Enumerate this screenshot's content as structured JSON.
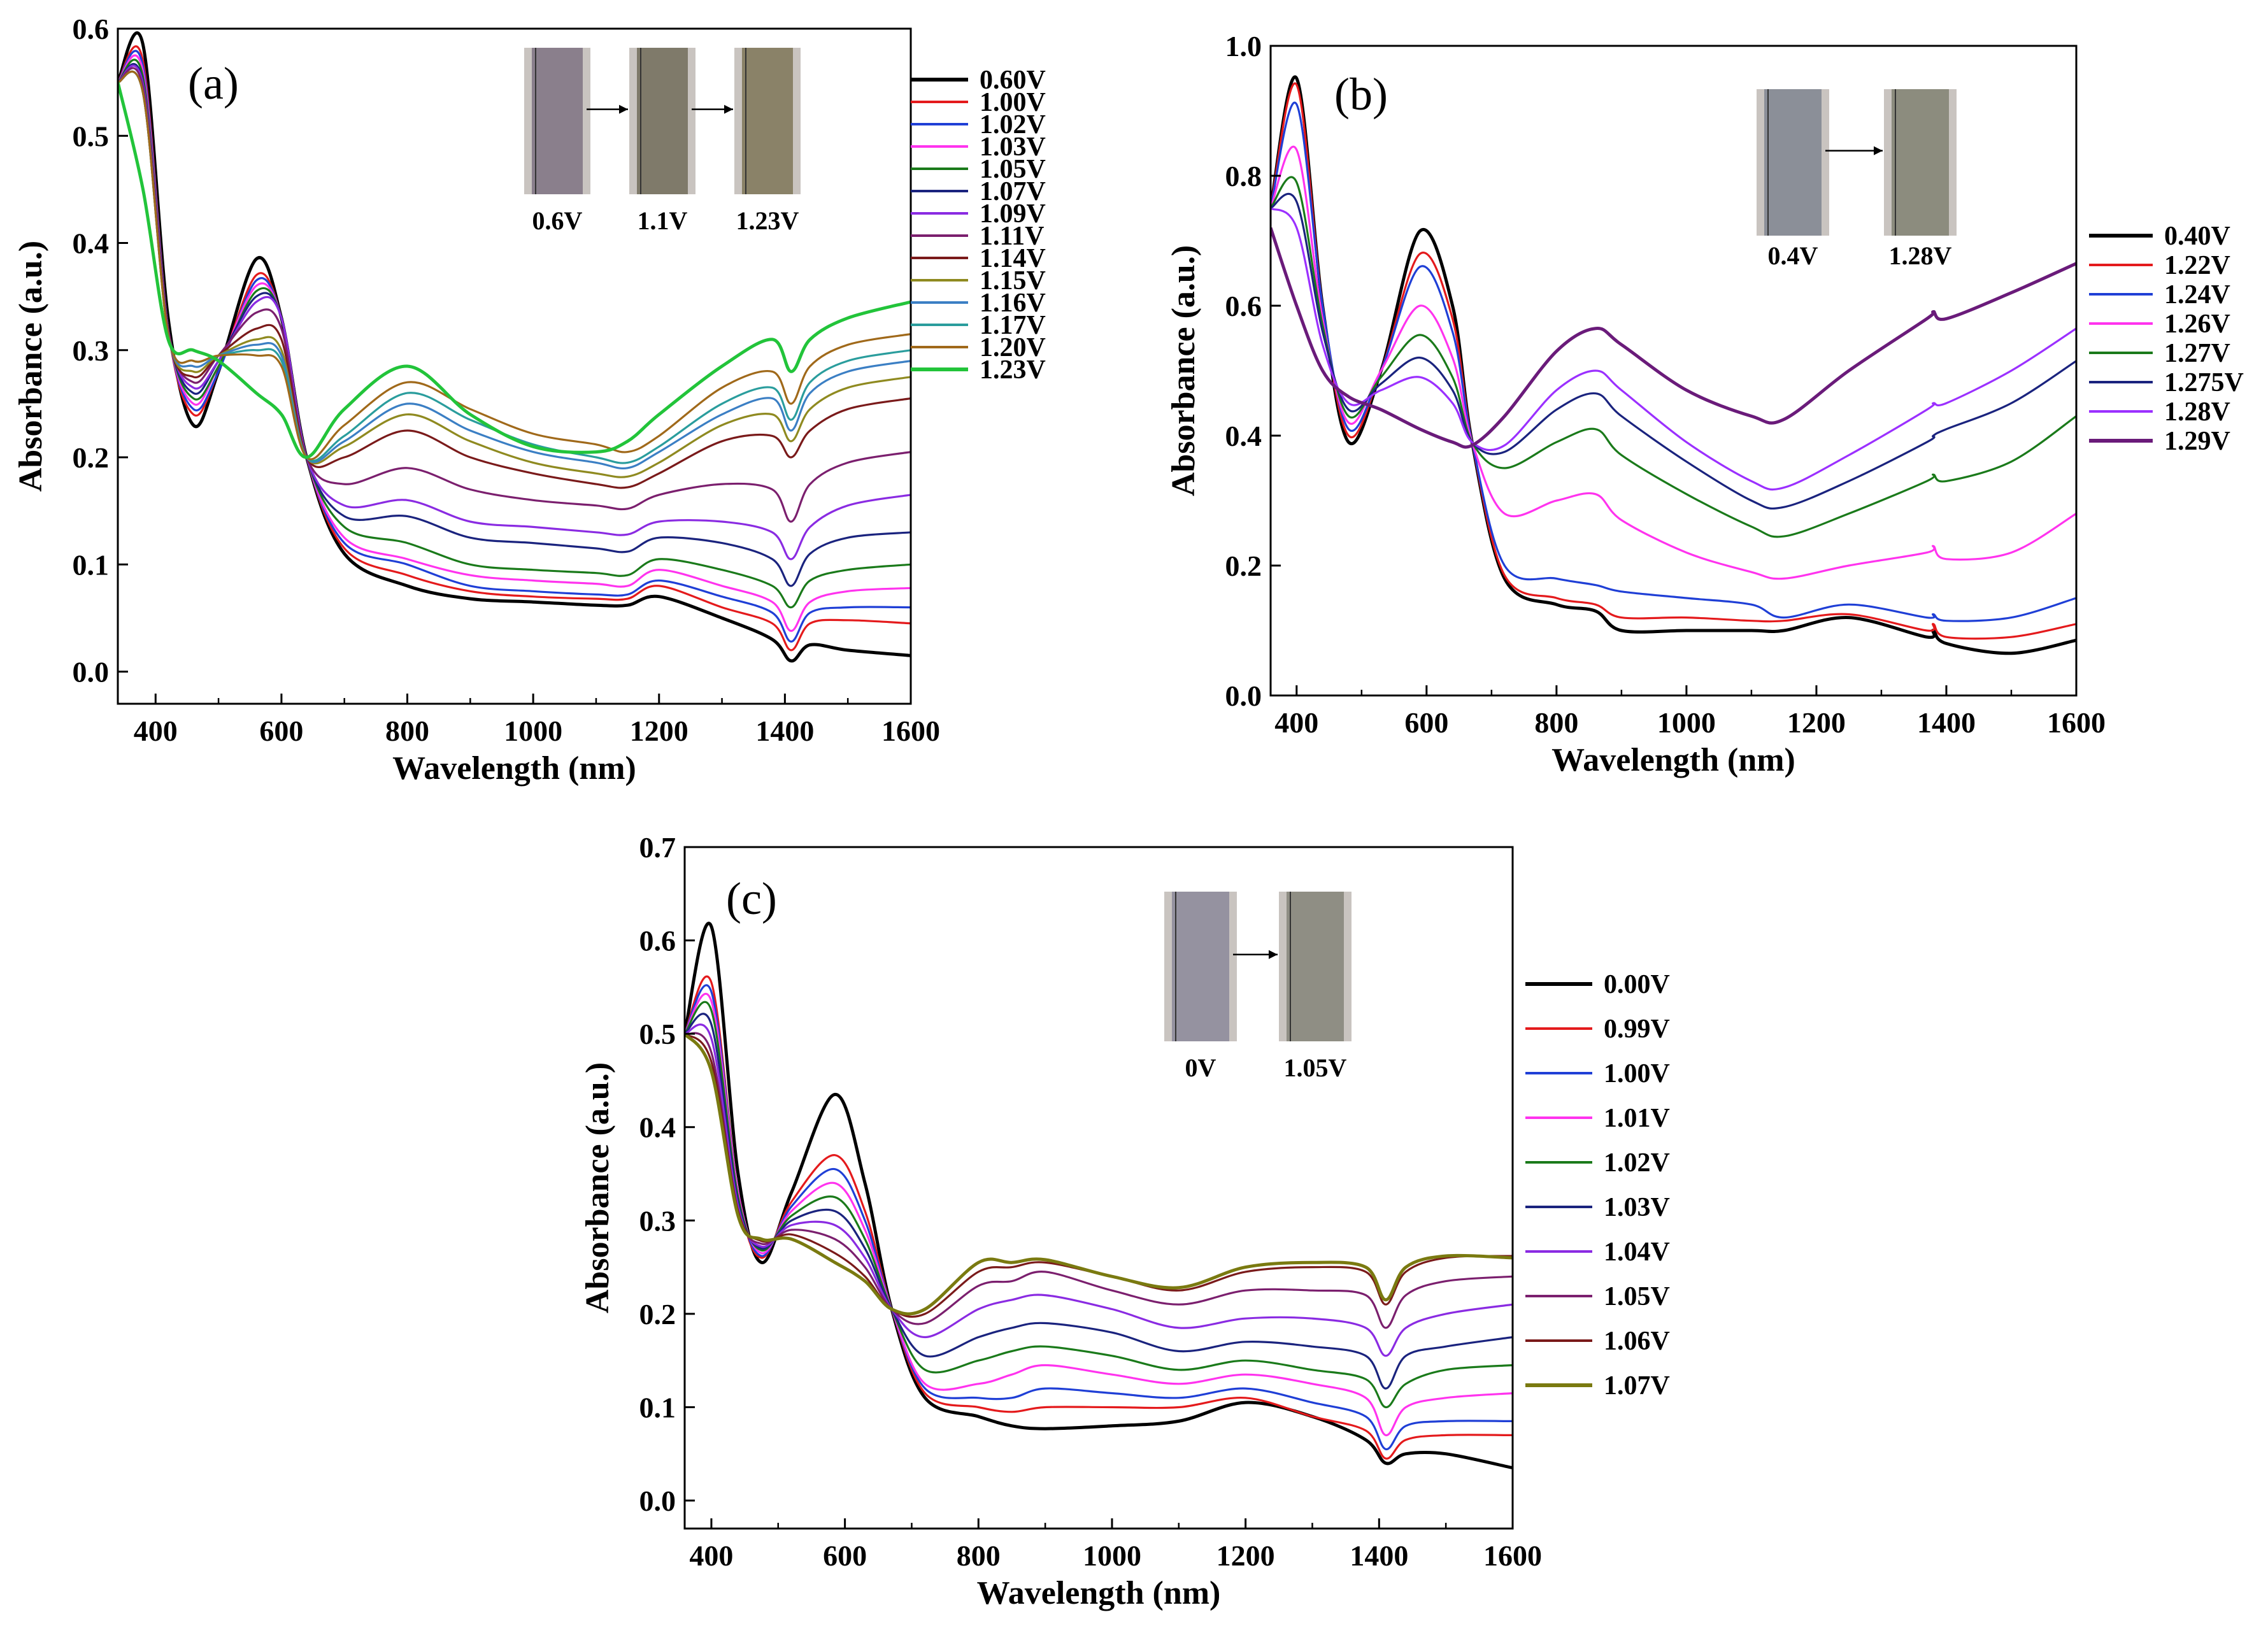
{
  "chart_data": [
    {
      "type": "line",
      "panel_label": "(a)",
      "xlabel": "Wavelength (nm)",
      "ylabel": "Absorbance (a.u.)",
      "xlim": [
        340,
        1600
      ],
      "ylim": [
        -0.03,
        0.6
      ],
      "xticks": [
        400,
        600,
        800,
        1000,
        1200,
        1400,
        1600
      ],
      "yticks": [
        0.0,
        0.1,
        0.2,
        0.3,
        0.4,
        0.5,
        0.6
      ],
      "inset_labels": [
        "0.6V",
        "1.1V",
        "1.23V"
      ],
      "legend_position": "right",
      "x": [
        340,
        380,
        420,
        460,
        500,
        560,
        600,
        640,
        700,
        800,
        900,
        1000,
        1100,
        1150,
        1200,
        1300,
        1380,
        1410,
        1440,
        1500,
        1600
      ],
      "series": [
        {
          "name": "0.60V",
          "color": "#000000",
          "values": [
            0.55,
            0.585,
            0.33,
            0.23,
            0.28,
            0.385,
            0.33,
            0.2,
            0.11,
            0.08,
            0.068,
            0.065,
            0.062,
            0.062,
            0.07,
            0.05,
            0.03,
            0.01,
            0.025,
            0.02,
            0.015
          ]
        },
        {
          "name": "1.00V",
          "color": "#e41a1c",
          "values": [
            0.55,
            0.57,
            0.32,
            0.24,
            0.28,
            0.37,
            0.33,
            0.2,
            0.115,
            0.09,
            0.075,
            0.07,
            0.068,
            0.068,
            0.08,
            0.06,
            0.045,
            0.02,
            0.045,
            0.048,
            0.045
          ]
        },
        {
          "name": "1.02V",
          "color": "#1f3fd6",
          "values": [
            0.55,
            0.565,
            0.32,
            0.245,
            0.28,
            0.365,
            0.33,
            0.2,
            0.12,
            0.1,
            0.08,
            0.075,
            0.072,
            0.072,
            0.085,
            0.07,
            0.055,
            0.028,
            0.055,
            0.06,
            0.06
          ]
        },
        {
          "name": "1.03V",
          "color": "#ff33ee",
          "values": [
            0.55,
            0.56,
            0.32,
            0.25,
            0.285,
            0.36,
            0.33,
            0.2,
            0.125,
            0.105,
            0.09,
            0.085,
            0.082,
            0.08,
            0.095,
            0.08,
            0.065,
            0.038,
            0.065,
            0.075,
            0.078
          ]
        },
        {
          "name": "1.05V",
          "color": "#1a7a1a",
          "values": [
            0.55,
            0.555,
            0.32,
            0.255,
            0.285,
            0.355,
            0.33,
            0.2,
            0.135,
            0.12,
            0.1,
            0.095,
            0.092,
            0.09,
            0.105,
            0.095,
            0.08,
            0.06,
            0.085,
            0.095,
            0.1
          ]
        },
        {
          "name": "1.07V",
          "color": "#1a237e",
          "values": [
            0.55,
            0.55,
            0.32,
            0.26,
            0.29,
            0.35,
            0.33,
            0.2,
            0.145,
            0.145,
            0.125,
            0.12,
            0.115,
            0.112,
            0.125,
            0.12,
            0.105,
            0.08,
            0.11,
            0.125,
            0.13
          ]
        },
        {
          "name": "1.09V",
          "color": "#8a2be2",
          "values": [
            0.55,
            0.548,
            0.32,
            0.265,
            0.29,
            0.345,
            0.33,
            0.2,
            0.155,
            0.16,
            0.14,
            0.135,
            0.13,
            0.128,
            0.14,
            0.14,
            0.13,
            0.105,
            0.135,
            0.155,
            0.165
          ]
        },
        {
          "name": "1.11V",
          "color": "#7b1f6e",
          "values": [
            0.55,
            0.545,
            0.32,
            0.27,
            0.295,
            0.335,
            0.32,
            0.2,
            0.175,
            0.19,
            0.17,
            0.16,
            0.155,
            0.152,
            0.165,
            0.175,
            0.17,
            0.14,
            0.175,
            0.195,
            0.205
          ]
        },
        {
          "name": "1.14V",
          "color": "#7a1a1a",
          "values": [
            0.55,
            0.54,
            0.315,
            0.275,
            0.295,
            0.32,
            0.31,
            0.2,
            0.2,
            0.225,
            0.2,
            0.185,
            0.175,
            0.172,
            0.185,
            0.215,
            0.22,
            0.2,
            0.225,
            0.245,
            0.255
          ]
        },
        {
          "name": "1.15V",
          "color": "#8f8a20",
          "values": [
            0.55,
            0.54,
            0.315,
            0.28,
            0.295,
            0.31,
            0.3,
            0.2,
            0.21,
            0.24,
            0.215,
            0.195,
            0.185,
            0.182,
            0.195,
            0.23,
            0.24,
            0.215,
            0.245,
            0.265,
            0.275
          ]
        },
        {
          "name": "1.16V",
          "color": "#3b7fc4",
          "values": [
            0.55,
            0.54,
            0.315,
            0.285,
            0.295,
            0.305,
            0.295,
            0.2,
            0.215,
            0.25,
            0.225,
            0.205,
            0.195,
            0.19,
            0.205,
            0.24,
            0.255,
            0.225,
            0.26,
            0.28,
            0.29
          ]
        },
        {
          "name": "1.17V",
          "color": "#2a9d9d",
          "values": [
            0.55,
            0.54,
            0.315,
            0.29,
            0.295,
            0.3,
            0.29,
            0.2,
            0.22,
            0.26,
            0.235,
            0.212,
            0.2,
            0.195,
            0.21,
            0.25,
            0.265,
            0.235,
            0.27,
            0.29,
            0.3
          ]
        },
        {
          "name": "1.20V",
          "color": "#a0691a",
          "values": [
            0.55,
            0.54,
            0.315,
            0.29,
            0.295,
            0.295,
            0.285,
            0.2,
            0.23,
            0.27,
            0.245,
            0.222,
            0.212,
            0.205,
            0.22,
            0.265,
            0.28,
            0.25,
            0.285,
            0.305,
            0.315
          ]
        },
        {
          "name": "1.23V",
          "color": "#22c43a",
          "values": [
            0.55,
            0.45,
            0.31,
            0.3,
            0.29,
            0.26,
            0.24,
            0.2,
            0.245,
            0.285,
            0.24,
            0.21,
            0.205,
            0.215,
            0.24,
            0.285,
            0.31,
            0.28,
            0.31,
            0.33,
            0.345
          ]
        }
      ]
    },
    {
      "type": "line",
      "panel_label": "(b)",
      "xlabel": "Wavelength (nm)",
      "ylabel": "Absorbance (a.u.)",
      "xlim": [
        360,
        1600
      ],
      "ylim": [
        0.0,
        1.0
      ],
      "xticks": [
        400,
        600,
        800,
        1000,
        1200,
        1400,
        1600
      ],
      "yticks": [
        0.0,
        0.2,
        0.4,
        0.6,
        0.8,
        1.0
      ],
      "inset_labels": [
        "0.4V",
        "1.28V"
      ],
      "legend_position": "right",
      "x": [
        360,
        400,
        440,
        480,
        530,
        590,
        640,
        670,
        720,
        800,
        860,
        900,
        1000,
        1100,
        1150,
        1250,
        1370,
        1380,
        1400,
        1500,
        1600
      ],
      "series": [
        {
          "name": "0.40V",
          "color": "#000000",
          "values": [
            0.75,
            0.95,
            0.6,
            0.39,
            0.5,
            0.715,
            0.6,
            0.39,
            0.18,
            0.14,
            0.13,
            0.1,
            0.1,
            0.1,
            0.1,
            0.12,
            0.09,
            0.1,
            0.08,
            0.065,
            0.085
          ]
        },
        {
          "name": "1.22V",
          "color": "#e41a1c",
          "values": [
            0.75,
            0.94,
            0.6,
            0.4,
            0.5,
            0.68,
            0.58,
            0.39,
            0.185,
            0.15,
            0.14,
            0.12,
            0.12,
            0.115,
            0.115,
            0.125,
            0.1,
            0.11,
            0.09,
            0.09,
            0.11
          ]
        },
        {
          "name": "1.24V",
          "color": "#1f3fd6",
          "values": [
            0.75,
            0.91,
            0.6,
            0.41,
            0.5,
            0.66,
            0.56,
            0.39,
            0.2,
            0.18,
            0.17,
            0.16,
            0.15,
            0.14,
            0.12,
            0.14,
            0.12,
            0.125,
            0.115,
            0.12,
            0.15
          ]
        },
        {
          "name": "1.26V",
          "color": "#ff33ee",
          "values": [
            0.75,
            0.84,
            0.58,
            0.42,
            0.5,
            0.6,
            0.52,
            0.39,
            0.28,
            0.3,
            0.31,
            0.27,
            0.22,
            0.19,
            0.18,
            0.2,
            0.22,
            0.23,
            0.21,
            0.22,
            0.28
          ]
        },
        {
          "name": "1.27V",
          "color": "#1a7a1a",
          "values": [
            0.75,
            0.79,
            0.57,
            0.43,
            0.49,
            0.555,
            0.49,
            0.39,
            0.35,
            0.39,
            0.41,
            0.37,
            0.31,
            0.26,
            0.245,
            0.28,
            0.33,
            0.34,
            0.33,
            0.36,
            0.43
          ]
        },
        {
          "name": "1.275V",
          "color": "#1a237e",
          "values": [
            0.75,
            0.76,
            0.56,
            0.44,
            0.48,
            0.52,
            0.47,
            0.39,
            0.375,
            0.44,
            0.465,
            0.43,
            0.36,
            0.3,
            0.29,
            0.33,
            0.39,
            0.4,
            0.41,
            0.45,
            0.515
          ]
        },
        {
          "name": "1.28V",
          "color": "#9b30ff",
          "values": [
            0.75,
            0.72,
            0.54,
            0.45,
            0.47,
            0.49,
            0.45,
            0.39,
            0.385,
            0.47,
            0.5,
            0.47,
            0.39,
            0.33,
            0.32,
            0.37,
            0.44,
            0.45,
            0.45,
            0.5,
            0.565
          ]
        },
        {
          "name": "1.29V",
          "color": "#6a1b7a",
          "values": [
            0.72,
            0.6,
            0.5,
            0.46,
            0.44,
            0.41,
            0.39,
            0.385,
            0.43,
            0.53,
            0.565,
            0.54,
            0.47,
            0.43,
            0.425,
            0.5,
            0.58,
            0.59,
            0.58,
            0.62,
            0.665
          ]
        }
      ]
    },
    {
      "type": "line",
      "panel_label": "(c)",
      "xlabel": "Wavelength (nm)",
      "ylabel": "Absorbance (a.u.)",
      "xlim": [
        360,
        1600
      ],
      "ylim": [
        -0.03,
        0.7
      ],
      "xticks": [
        400,
        600,
        800,
        1000,
        1200,
        1400,
        1600
      ],
      "yticks": [
        0.0,
        0.1,
        0.2,
        0.3,
        0.4,
        0.5,
        0.6,
        0.7
      ],
      "inset_labels": [
        "0V",
        "1.05V"
      ],
      "legend_position": "right",
      "x": [
        360,
        400,
        440,
        475,
        520,
        585,
        630,
        670,
        720,
        800,
        850,
        900,
        1000,
        1100,
        1200,
        1300,
        1380,
        1410,
        1440,
        1500,
        1600
      ],
      "series": [
        {
          "name": "0.00V",
          "color": "#000000",
          "values": [
            0.5,
            0.615,
            0.35,
            0.255,
            0.33,
            0.435,
            0.34,
            0.205,
            0.11,
            0.09,
            0.08,
            0.077,
            0.08,
            0.085,
            0.105,
            0.09,
            0.065,
            0.04,
            0.05,
            0.05,
            0.035
          ]
        },
        {
          "name": "0.99V",
          "color": "#e41a1c",
          "values": [
            0.5,
            0.555,
            0.33,
            0.26,
            0.32,
            0.37,
            0.31,
            0.205,
            0.115,
            0.1,
            0.095,
            0.1,
            0.1,
            0.1,
            0.11,
            0.09,
            0.075,
            0.045,
            0.065,
            0.07,
            0.07
          ]
        },
        {
          "name": "1.00V",
          "color": "#1f3fd6",
          "values": [
            0.5,
            0.545,
            0.33,
            0.262,
            0.315,
            0.355,
            0.3,
            0.205,
            0.12,
            0.11,
            0.11,
            0.12,
            0.115,
            0.11,
            0.12,
            0.105,
            0.09,
            0.055,
            0.08,
            0.085,
            0.085
          ]
        },
        {
          "name": "1.01V",
          "color": "#ff33ee",
          "values": [
            0.5,
            0.535,
            0.33,
            0.265,
            0.31,
            0.34,
            0.29,
            0.205,
            0.125,
            0.125,
            0.135,
            0.145,
            0.135,
            0.125,
            0.135,
            0.125,
            0.11,
            0.07,
            0.1,
            0.11,
            0.115
          ]
        },
        {
          "name": "1.02V",
          "color": "#1a7a1a",
          "values": [
            0.5,
            0.525,
            0.325,
            0.268,
            0.305,
            0.325,
            0.28,
            0.205,
            0.14,
            0.15,
            0.16,
            0.165,
            0.155,
            0.14,
            0.15,
            0.14,
            0.13,
            0.1,
            0.125,
            0.14,
            0.145
          ]
        },
        {
          "name": "1.03V",
          "color": "#1a237e",
          "values": [
            0.5,
            0.51,
            0.32,
            0.27,
            0.3,
            0.31,
            0.27,
            0.205,
            0.155,
            0.175,
            0.185,
            0.19,
            0.18,
            0.16,
            0.17,
            0.165,
            0.155,
            0.12,
            0.155,
            0.165,
            0.175
          ]
        },
        {
          "name": "1.04V",
          "color": "#8a2be2",
          "values": [
            0.5,
            0.495,
            0.315,
            0.272,
            0.295,
            0.295,
            0.26,
            0.205,
            0.175,
            0.205,
            0.215,
            0.22,
            0.205,
            0.185,
            0.195,
            0.195,
            0.185,
            0.155,
            0.185,
            0.2,
            0.21
          ]
        },
        {
          "name": "1.05V",
          "color": "#7b1f6e",
          "values": [
            0.5,
            0.48,
            0.31,
            0.275,
            0.29,
            0.28,
            0.25,
            0.205,
            0.19,
            0.23,
            0.235,
            0.245,
            0.225,
            0.21,
            0.225,
            0.225,
            0.22,
            0.185,
            0.22,
            0.235,
            0.24
          ]
        },
        {
          "name": "1.06V",
          "color": "#7a1a1a",
          "values": [
            0.5,
            0.47,
            0.31,
            0.278,
            0.285,
            0.265,
            0.24,
            0.205,
            0.2,
            0.245,
            0.25,
            0.255,
            0.24,
            0.225,
            0.245,
            0.25,
            0.245,
            0.21,
            0.245,
            0.26,
            0.262
          ]
        },
        {
          "name": "1.07V",
          "color": "#7a7a10",
          "values": [
            0.5,
            0.46,
            0.305,
            0.28,
            0.28,
            0.255,
            0.235,
            0.205,
            0.205,
            0.255,
            0.255,
            0.258,
            0.24,
            0.228,
            0.25,
            0.255,
            0.25,
            0.215,
            0.25,
            0.262,
            0.26
          ]
        }
      ]
    }
  ]
}
